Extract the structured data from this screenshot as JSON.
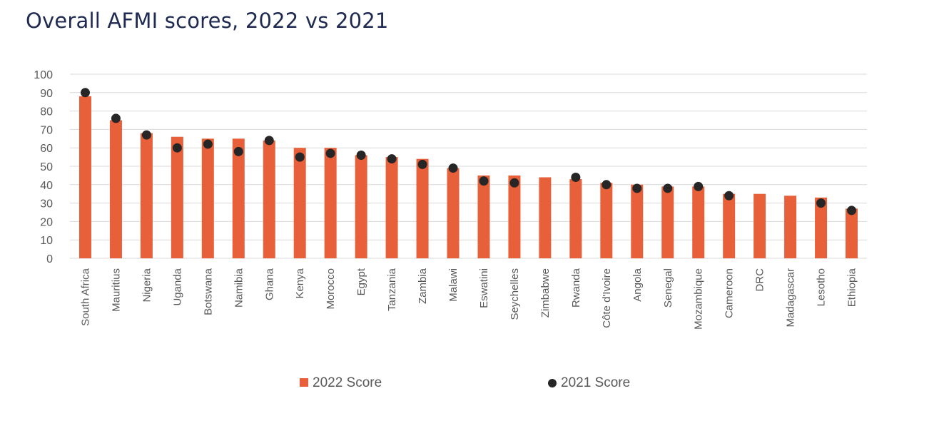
{
  "title": "Overall AFMI scores, 2022 vs 2021",
  "colors": {
    "bar": "#e8603a",
    "dot": "#262626",
    "grid": "#d9d9d9"
  },
  "chart_data": {
    "type": "bar",
    "title": "Overall AFMI scores, 2022 vs 2021",
    "xlabel": "",
    "ylabel": "",
    "ylim": [
      0,
      100
    ],
    "yticks": [
      0,
      10,
      20,
      30,
      40,
      50,
      60,
      70,
      80,
      90,
      100
    ],
    "grid": true,
    "legend": "bottom",
    "categories": [
      "South Africa",
      "Mauritius",
      "Nigeria",
      "Uganda",
      "Botswana",
      "Namibia",
      "Ghana",
      "Kenya",
      "Morocco",
      "Egypt",
      "Tanzania",
      "Zambia",
      "Malawi",
      "Eswatini",
      "Seychelles",
      "Zimbabwe",
      "Rwanda",
      "Côte d'Ivoire",
      "Angola",
      "Senegal",
      "Mozambique",
      "Cameroon",
      "DRC",
      "Madagascar",
      "Lesotho",
      "Ethiopia"
    ],
    "series": [
      {
        "name": "2022 Score",
        "kind": "bar",
        "values": [
          88,
          75,
          68,
          66,
          65,
          65,
          64,
          60,
          60,
          56,
          55,
          54,
          49,
          45,
          45,
          44,
          43,
          41,
          40,
          39,
          39,
          35,
          35,
          34,
          33,
          27
        ]
      },
      {
        "name": "2021 Score",
        "kind": "dot",
        "values": [
          90,
          76,
          67,
          60,
          62,
          58,
          64,
          55,
          57,
          56,
          54,
          51,
          49,
          42,
          41,
          null,
          44,
          40,
          38,
          38,
          39,
          34,
          null,
          null,
          30,
          26
        ]
      }
    ]
  }
}
